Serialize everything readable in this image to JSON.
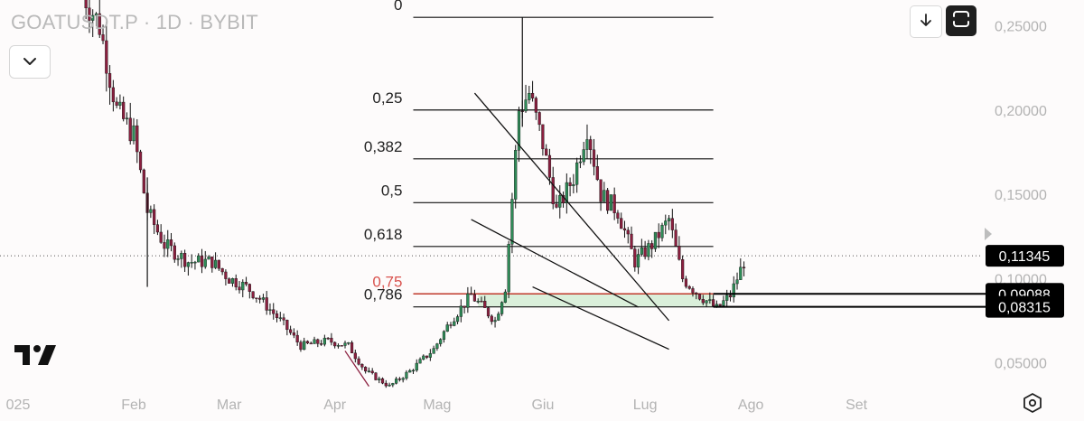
{
  "header": {
    "symbol_text": "GOATUSDT.P · 1D · BYBIT"
  },
  "icons": {
    "dropdown": "chevron-down-icon",
    "download": "arrow-down-icon",
    "selection": "rounded-square-icon",
    "logo": "tradingview-logo-icon",
    "settings": "settings-hex-icon"
  },
  "colors": {
    "up": "#2e8b57",
    "down": "#8b1f3f",
    "wick": "#111111",
    "fib_line": "#111111",
    "fib_075": "#c0392b",
    "zone": "#d4ecd4",
    "price_tag_bg": "#000000",
    "price_tag_text": "#ffffff"
  },
  "chart_data": {
    "type": "candlestick",
    "title": "",
    "symbol": "GOATUSDT.P",
    "timeframe": "1D",
    "exchange": "BYBIT",
    "y_axis": {
      "ticks": [
        "0,25000",
        "0,20000",
        "0,15000",
        "0,10000",
        "0,05000"
      ],
      "tick_values": [
        0.25,
        0.2,
        0.15,
        0.1,
        0.05
      ],
      "side": "right"
    },
    "x_axis": {
      "ticks": [
        "025",
        "Feb",
        "Mar",
        "Apr",
        "Mag",
        "Giu",
        "Lug",
        "Ago",
        "Set"
      ]
    },
    "price_tags": [
      {
        "value": 0.11345,
        "label": "0,11345"
      },
      {
        "value": 0.09088,
        "label": "0,09088"
      },
      {
        "value": 0.08315,
        "label": "0,08315"
      }
    ],
    "fib_levels": [
      {
        "label": "0",
        "price": 0.255
      },
      {
        "label": "0,25",
        "price": 0.2
      },
      {
        "label": "0,382",
        "price": 0.171
      },
      {
        "label": "0,5",
        "price": 0.145
      },
      {
        "label": "0,618",
        "price": 0.119
      },
      {
        "label": "0,75",
        "price": 0.09088,
        "highlight": true
      },
      {
        "label": "0,786",
        "price": 0.08315
      }
    ],
    "fib_range_dates": [
      "2025-04-24",
      "2025-07-21"
    ],
    "zone": {
      "from": "2025-05-13",
      "to": "2025-07-21",
      "low": 0.08315,
      "high": 0.09088
    },
    "trendlines": [
      {
        "from": [
          "2025-05-12",
          0.21
        ],
        "to": [
          "2025-07-08",
          0.075
        ]
      },
      {
        "from": [
          "2025-05-11",
          0.135
        ],
        "to": [
          "2025-06-29",
          0.083
        ]
      },
      {
        "from": [
          "2025-05-29",
          0.095
        ],
        "to": [
          "2025-07-08",
          0.058
        ]
      },
      {
        "from": [
          "2025-04-04",
          0.057
        ],
        "to": [
          "2025-04-11",
          0.036
        ]
      }
    ],
    "anchors": [
      [
        "2025-01-17",
        0.27
      ],
      [
        "2025-01-22",
        0.25
      ],
      [
        "2025-01-27",
        0.2
      ],
      [
        "2025-02-01",
        0.185
      ],
      [
        "2025-02-05",
        0.14
      ],
      [
        "2025-02-10",
        0.12
      ],
      [
        "2025-02-17",
        0.11
      ],
      [
        "2025-02-24",
        0.11
      ],
      [
        "2025-03-01",
        0.1
      ],
      [
        "2025-03-06",
        0.095
      ],
      [
        "2025-03-10",
        0.088
      ],
      [
        "2025-03-16",
        0.075
      ],
      [
        "2025-03-22",
        0.06
      ],
      [
        "2025-03-30",
        0.063
      ],
      [
        "2025-04-05",
        0.06
      ],
      [
        "2025-04-10",
        0.045
      ],
      [
        "2025-04-17",
        0.036
      ],
      [
        "2025-04-23",
        0.045
      ],
      [
        "2025-04-30",
        0.058
      ],
      [
        "2025-05-05",
        0.075
      ],
      [
        "2025-05-11",
        0.09
      ],
      [
        "2025-05-18",
        0.075
      ],
      [
        "2025-05-21",
        0.095
      ],
      [
        "2025-05-25",
        0.2
      ],
      [
        "2025-05-28",
        0.21
      ],
      [
        "2025-06-01",
        0.18
      ],
      [
        "2025-06-05",
        0.14
      ],
      [
        "2025-06-10",
        0.16
      ],
      [
        "2025-06-14",
        0.19
      ],
      [
        "2025-06-18",
        0.15
      ],
      [
        "2025-06-23",
        0.14
      ],
      [
        "2025-06-28",
        0.11
      ],
      [
        "2025-07-03",
        0.12
      ],
      [
        "2025-07-08",
        0.135
      ],
      [
        "2025-07-12",
        0.1
      ],
      [
        "2025-07-17",
        0.09
      ],
      [
        "2025-07-22",
        0.082
      ],
      [
        "2025-07-26",
        0.09
      ],
      [
        "2025-07-30",
        0.11
      ]
    ]
  }
}
